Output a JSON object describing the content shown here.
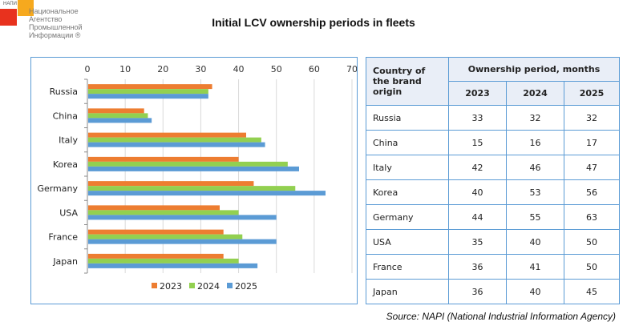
{
  "logo": {
    "abbr": "НАПИ",
    "lines": [
      "Национальное",
      "Агентство",
      "Промышленной",
      "Информации ®"
    ]
  },
  "title": "Initial LCV ownership periods in fleets",
  "source": "Source: NAPI (National Industrial Information Agency)",
  "colors": {
    "2023": "#ed7d31",
    "2024": "#92d050",
    "2025": "#5b9bd5",
    "border": "#5b9bd5"
  },
  "chart_data": {
    "type": "bar",
    "orientation": "horizontal",
    "title": "Initial LCV ownership periods in fleets",
    "xlabel": "",
    "ylabel": "",
    "xlim": [
      0,
      70
    ],
    "xticks": [
      0,
      10,
      20,
      30,
      40,
      50,
      60,
      70
    ],
    "grid": true,
    "legend": "bottom",
    "categories": [
      "Russia",
      "China",
      "Italy",
      "Korea",
      "Germany",
      "USA",
      "France",
      "Japan"
    ],
    "series": [
      {
        "name": "2023",
        "color": "#ed7d31",
        "values": [
          33,
          15,
          42,
          40,
          44,
          35,
          36,
          36
        ]
      },
      {
        "name": "2024",
        "color": "#92d050",
        "values": [
          32,
          16,
          46,
          53,
          55,
          40,
          41,
          40
        ]
      },
      {
        "name": "2025",
        "color": "#5b9bd5",
        "values": [
          32,
          17,
          47,
          56,
          63,
          50,
          50,
          45
        ]
      }
    ]
  },
  "table": {
    "col_header": "Country of the brand origin",
    "group_header": "Ownership period, months",
    "years": [
      "2023",
      "2024",
      "2025"
    ],
    "rows": [
      {
        "country": "Russia",
        "values": [
          "33",
          "32",
          "32"
        ]
      },
      {
        "country": "China",
        "values": [
          "15",
          "16",
          "17"
        ]
      },
      {
        "country": "Italy",
        "values": [
          "42",
          "46",
          "47"
        ]
      },
      {
        "country": "Korea",
        "values": [
          "40",
          "53",
          "56"
        ]
      },
      {
        "country": "Germany",
        "values": [
          "44",
          "55",
          "63"
        ]
      },
      {
        "country": "USA",
        "values": [
          "35",
          "40",
          "50"
        ]
      },
      {
        "country": "France",
        "values": [
          "36",
          "41",
          "50"
        ]
      },
      {
        "country": "Japan",
        "values": [
          "36",
          "40",
          "45"
        ]
      }
    ]
  }
}
